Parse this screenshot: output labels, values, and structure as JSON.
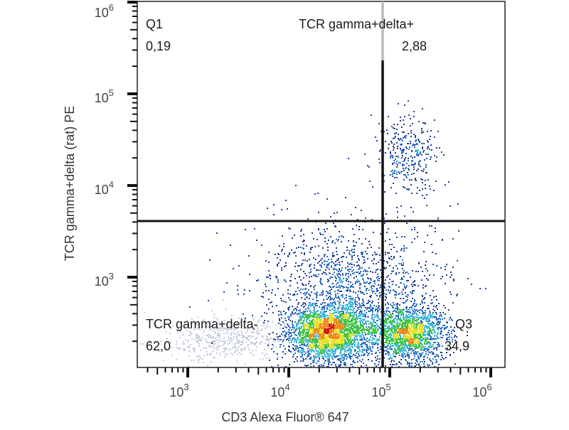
{
  "chart_data": {
    "type": "scatter",
    "subtype": "flow-cytometry-density-dot-plot",
    "xlabel": "CD3 Alexa Fluor® 647",
    "ylabel": "TCR gamma+delta (rat) PE",
    "xscale": "log",
    "yscale": "log",
    "xlim": [
      316,
      1260000
    ],
    "ylim": [
      100,
      1000000
    ],
    "x_ticks": [
      {
        "base": "10",
        "exp": "3"
      },
      {
        "base": "10",
        "exp": "4"
      },
      {
        "base": "10",
        "exp": "5"
      },
      {
        "base": "10",
        "exp": "6"
      }
    ],
    "y_ticks": [
      {
        "base": "10",
        "exp": "3"
      },
      {
        "base": "10",
        "exp": "4"
      },
      {
        "base": "10",
        "exp": "5"
      },
      {
        "base": "10",
        "exp": "6"
      }
    ],
    "grid": false,
    "gates": {
      "vertical_x": 87000,
      "horizontal_y": 4100
    },
    "quadrants": [
      {
        "name": "Q1",
        "value": "0,19",
        "position": "top-left"
      },
      {
        "name": "TCR gamma+delta+",
        "value": "2,88",
        "position": "top-right"
      },
      {
        "name": "TCR gamma+delta-",
        "value": "62,0",
        "position": "bottom-left"
      },
      {
        "name": "Q3",
        "value": "34,9",
        "position": "bottom-right"
      }
    ],
    "populations": [
      {
        "center": [
          25000,
          250
        ],
        "spread_decades": [
          0.22,
          0.16
        ],
        "events": 2600
      },
      {
        "center": [
          150000,
          250
        ],
        "spread_decades": [
          0.18,
          0.16
        ],
        "events": 1700
      },
      {
        "center": [
          150000,
          22000
        ],
        "spread_decades": [
          0.15,
          0.22
        ],
        "events": 320
      },
      {
        "center": [
          40000,
          900
        ],
        "spread_decades": [
          0.45,
          0.35
        ],
        "events": 1300
      },
      {
        "center": [
          2500,
          220
        ],
        "spread_decades": [
          0.3,
          0.12
        ],
        "events": 500,
        "gray": true
      }
    ],
    "colormap": [
      "#1f3f9a",
      "#2e6fc4",
      "#3fb8d8",
      "#43c24a",
      "#e8e02a",
      "#f08a1c",
      "#d7191c"
    ],
    "gray_color": "#c8cde0"
  }
}
